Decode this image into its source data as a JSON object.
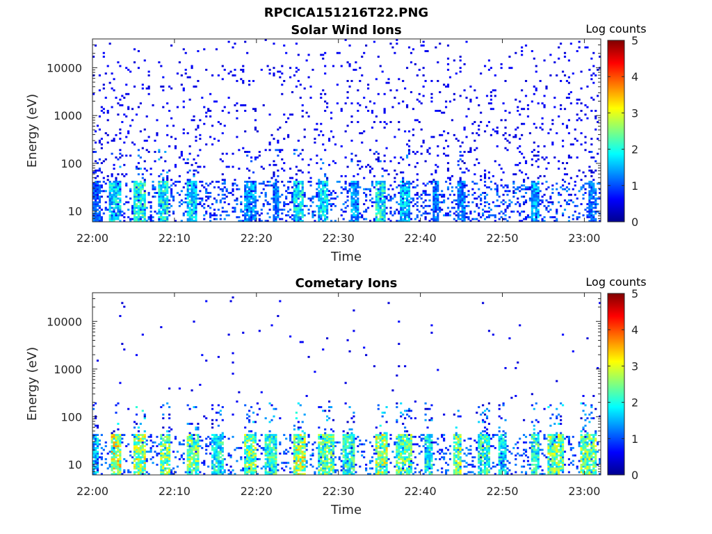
{
  "figure": {
    "title": "RPCICA151216T22.PNG",
    "panel_titles": [
      "Solar Wind Ions",
      "Cometary Ions"
    ],
    "colorbar_label": "Log counts"
  },
  "chart_data": [
    {
      "type": "heatmap",
      "title": "Solar Wind Ions",
      "xlabel": "Time",
      "ylabel": "Energy (eV)",
      "x_ticks": [
        "22:00",
        "22:10",
        "22:20",
        "22:30",
        "22:40",
        "22:50",
        "23:00"
      ],
      "y_ticks": [
        "10",
        "100",
        "1000",
        "10000"
      ],
      "y_scale": "log",
      "ylim": [
        6,
        40000
      ],
      "xlim": [
        "22:00",
        "23:02"
      ],
      "colorbar": {
        "label": "Log counts",
        "range": [
          0,
          5
        ],
        "ticks": [
          "0",
          "1",
          "2",
          "3",
          "4",
          "5"
        ],
        "colormap": "jet"
      },
      "pattern": {
        "seed": 7,
        "background_density": 0.06,
        "background_level": 0.4,
        "low_energy_bursts": [
          {
            "start_min": 0,
            "end_min": 1,
            "level": 1.2
          },
          {
            "start_min": 2,
            "end_min": 3.5,
            "level": 2.0
          },
          {
            "start_min": 5,
            "end_min": 6.5,
            "level": 2.3
          },
          {
            "start_min": 8,
            "end_min": 9.2,
            "level": 2.2
          },
          {
            "start_min": 11.5,
            "end_min": 12.7,
            "level": 2.0
          },
          {
            "start_min": 18.5,
            "end_min": 20,
            "level": 1.6
          },
          {
            "start_min": 22,
            "end_min": 22.8,
            "level": 1.4
          },
          {
            "start_min": 24.5,
            "end_min": 25.8,
            "level": 2.1
          },
          {
            "start_min": 27.5,
            "end_min": 28.8,
            "level": 2.0
          },
          {
            "start_min": 31.5,
            "end_min": 32.5,
            "level": 1.6
          },
          {
            "start_min": 34.5,
            "end_min": 35.8,
            "level": 2.2
          },
          {
            "start_min": 37.5,
            "end_min": 38.7,
            "level": 1.8
          },
          {
            "start_min": 41.5,
            "end_min": 42.2,
            "level": 1.4
          },
          {
            "start_min": 44.5,
            "end_min": 45.5,
            "level": 1.5
          },
          {
            "start_min": 53.5,
            "end_min": 54.5,
            "level": 1.7
          },
          {
            "start_min": 60.5,
            "end_min": 61.5,
            "level": 1.4
          }
        ]
      }
    },
    {
      "type": "heatmap",
      "title": "Cometary Ions",
      "xlabel": "Time",
      "ylabel": "Energy (eV)",
      "x_ticks": [
        "22:00",
        "22:10",
        "22:20",
        "22:30",
        "22:40",
        "22:50",
        "23:00"
      ],
      "y_ticks": [
        "10",
        "100",
        "1000",
        "10000"
      ],
      "y_scale": "log",
      "ylim": [
        6,
        40000
      ],
      "xlim": [
        "22:00",
        "23:02"
      ],
      "colorbar": {
        "label": "Log counts",
        "range": [
          0,
          5
        ],
        "ticks": [
          "0",
          "1",
          "2",
          "3",
          "4",
          "5"
        ],
        "colormap": "jet"
      },
      "pattern": {
        "seed": 21,
        "background_density": 0.006,
        "background_level": 0.4,
        "low_energy_bursts": [
          {
            "start_min": 0,
            "end_min": 0.8,
            "level": 1.8
          },
          {
            "start_min": 2.2,
            "end_min": 3.6,
            "level": 3.2
          },
          {
            "start_min": 5,
            "end_min": 6.5,
            "level": 3.0
          },
          {
            "start_min": 8.2,
            "end_min": 9.5,
            "level": 2.8
          },
          {
            "start_min": 11.5,
            "end_min": 13,
            "level": 2.8
          },
          {
            "start_min": 14.5,
            "end_min": 16,
            "level": 2.2
          },
          {
            "start_min": 18.5,
            "end_min": 20,
            "level": 2.8
          },
          {
            "start_min": 21,
            "end_min": 22.5,
            "level": 2.4
          },
          {
            "start_min": 24.5,
            "end_min": 26,
            "level": 3.1
          },
          {
            "start_min": 27.5,
            "end_min": 29.5,
            "level": 2.6
          },
          {
            "start_min": 30.5,
            "end_min": 32,
            "level": 2.4
          },
          {
            "start_min": 34.5,
            "end_min": 36,
            "level": 3.0
          },
          {
            "start_min": 37,
            "end_min": 39,
            "level": 2.6
          },
          {
            "start_min": 40.5,
            "end_min": 41.5,
            "level": 2.2
          },
          {
            "start_min": 44,
            "end_min": 45,
            "level": 2.8
          },
          {
            "start_min": 47,
            "end_min": 48.5,
            "level": 2.4
          },
          {
            "start_min": 49.5,
            "end_min": 50.5,
            "level": 2.0
          },
          {
            "start_min": 53.5,
            "end_min": 54.5,
            "level": 2.4
          },
          {
            "start_min": 55.5,
            "end_min": 57.5,
            "level": 2.8
          },
          {
            "start_min": 59.5,
            "end_min": 61.5,
            "level": 2.8
          }
        ]
      }
    }
  ]
}
